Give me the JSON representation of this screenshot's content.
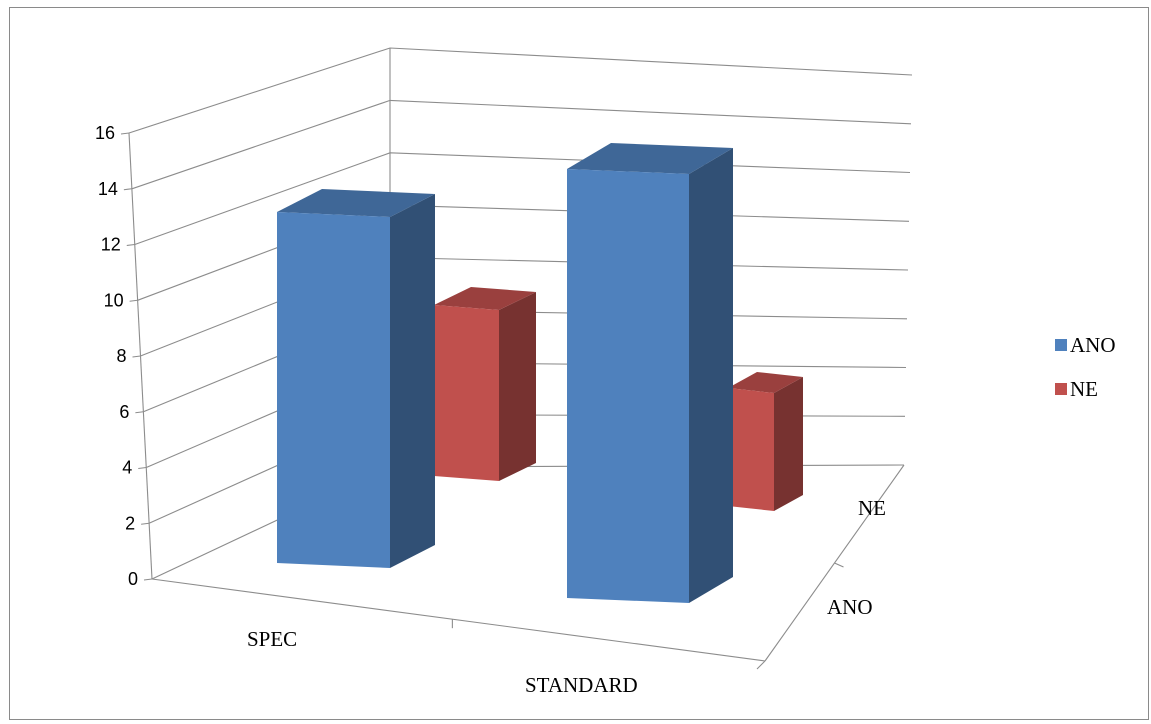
{
  "chart_data": {
    "type": "bar",
    "subtype": "3d-column",
    "categories": [
      "SPEC",
      "STANDARD"
    ],
    "depth_categories": [
      "ANO",
      "NE"
    ],
    "series": [
      {
        "name": "ANO",
        "values": [
          13,
          15
        ],
        "color": "#4f81bd"
      },
      {
        "name": "NE",
        "values": [
          6,
          4
        ],
        "color": "#c0504d"
      }
    ],
    "ylim": [
      0,
      16
    ],
    "yticks": [
      0,
      2,
      4,
      6,
      8,
      10,
      12,
      14,
      16
    ],
    "grid": true,
    "legend_position": "right"
  }
}
